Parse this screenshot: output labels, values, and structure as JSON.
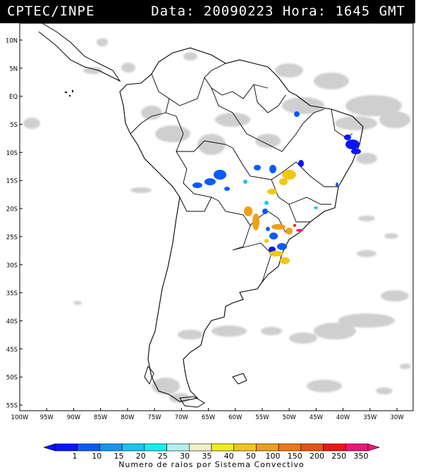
{
  "header": {
    "source": "CPTEC/INPE",
    "datetime": "Data: 20090223 Hora: 1645 GMT"
  },
  "map": {
    "lon_range": [
      -100,
      -27
    ],
    "lat_range": [
      -56,
      13
    ],
    "lat_labels": [
      "10N",
      "5N",
      "EQ",
      "5S",
      "10S",
      "15S",
      "20S",
      "25S",
      "30S",
      "35S",
      "40S",
      "45S",
      "50S",
      "55S"
    ],
    "lat_values": [
      10,
      5,
      0,
      -5,
      -10,
      -15,
      -20,
      -25,
      -30,
      -35,
      -40,
      -45,
      -50,
      -55
    ],
    "lon_labels": [
      "100W",
      "95W",
      "90W",
      "85W",
      "80W",
      "75W",
      "70W",
      "65W",
      "60W",
      "55W",
      "50W",
      "45W",
      "40W",
      "35W",
      "30W"
    ],
    "lon_values": [
      -100,
      -95,
      -90,
      -85,
      -80,
      -75,
      -70,
      -65,
      -60,
      -55,
      -50,
      -45,
      -40,
      -35,
      -30
    ]
  },
  "colorbar": {
    "labels": [
      "1",
      "10",
      "15",
      "20",
      "25",
      "30",
      "35",
      "40",
      "50",
      "100",
      "150",
      "200",
      "250",
      "350"
    ],
    "colors": [
      "#0a14ff",
      "#0a5aff",
      "#1496f0",
      "#14c8f0",
      "#14f0f0",
      "#b4f0f0",
      "#f0f0c8",
      "#f0f014",
      "#f0c814",
      "#f0a014",
      "#f07814",
      "#f05014",
      "#f01414",
      "#f01478"
    ],
    "caption": "Numero de raios por Sistema Convectivo"
  },
  "colors": {
    "land_outline": "#000000",
    "cloud": "#c8c8c8",
    "background": "#ffffff"
  }
}
